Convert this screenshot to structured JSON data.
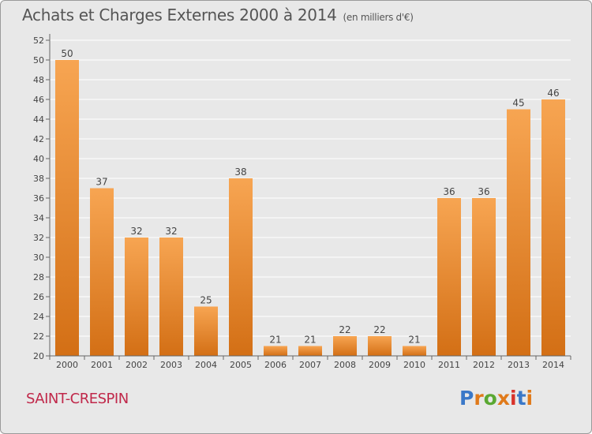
{
  "header": {
    "title": "Achats et Charges Externes 2000 à 2014",
    "subtitle": "(en milliers d'€)"
  },
  "footer": {
    "commune": "SAINT-CRESPIN",
    "logo_text": "Proxiti"
  },
  "colors": {
    "bar_light": "#f7a552",
    "bar_dark": "#d36f15",
    "grid": "#ffffff",
    "background": "#e8e8e8",
    "commune_text": "#c0284a",
    "logo_letters": [
      "#3a78c8",
      "#e07a1a",
      "#5aa832",
      "#e07a1a",
      "#d8322a",
      "#3a78c8",
      "#e07a1a"
    ]
  },
  "chart_data": {
    "type": "bar",
    "categories": [
      "2000",
      "2001",
      "2002",
      "2003",
      "2004",
      "2005",
      "2006",
      "2007",
      "2008",
      "2009",
      "2010",
      "2011",
      "2012",
      "2013",
      "2014"
    ],
    "values": [
      50,
      37,
      32,
      32,
      25,
      38,
      21,
      21,
      22,
      22,
      21,
      36,
      36,
      45,
      46
    ],
    "ylim": [
      20,
      52
    ],
    "yticks": [
      20,
      22,
      24,
      26,
      28,
      30,
      32,
      34,
      36,
      38,
      40,
      42,
      44,
      46,
      48,
      50,
      52
    ],
    "grid": true
  }
}
